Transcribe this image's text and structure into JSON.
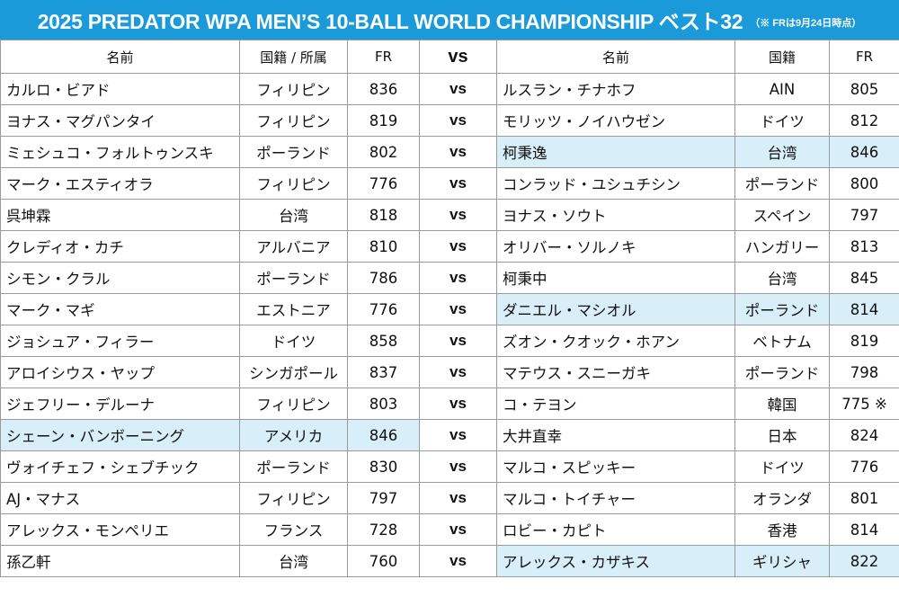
{
  "header": {
    "title": "2025 PREDATOR WPA MEN’S 10-BALL WORLD CHAMPIONSHIP ベスト32",
    "note": "（※ FRは9月24日時点）",
    "color": "#1a9ad9"
  },
  "columns": {
    "left_name": "名前",
    "left_country": "国籍 / 所属",
    "left_fr": "FR",
    "vs": "vs",
    "right_name": "名前",
    "right_country": "国籍",
    "right_fr": "FR"
  },
  "highlight_color": "#d8eef9",
  "matches": [
    {
      "left": {
        "name": "カルロ・ビアド",
        "country": "フィリピン",
        "fr": "836",
        "highlight": false
      },
      "vs": "vs",
      "right": {
        "name": "ルスラン・チナホフ",
        "country": "AIN",
        "fr": "805",
        "highlight": false
      }
    },
    {
      "left": {
        "name": "ヨナス・マグパンタイ",
        "country": "フィリピン",
        "fr": "819",
        "highlight": false
      },
      "vs": "vs",
      "right": {
        "name": "モリッツ・ノイハウゼン",
        "country": "ドイツ",
        "fr": "812",
        "highlight": false
      }
    },
    {
      "left": {
        "name": "ミェシュコ・フォルトゥンスキ",
        "country": "ポーランド",
        "fr": "802",
        "highlight": false
      },
      "vs": "vs",
      "right": {
        "name": "柯秉逸",
        "country": "台湾",
        "fr": "846",
        "highlight": true
      }
    },
    {
      "left": {
        "name": "マーク・エスティオラ",
        "country": "フィリピン",
        "fr": "776",
        "highlight": false
      },
      "vs": "vs",
      "right": {
        "name": "コンラッド・ユシュチシン",
        "country": "ポーランド",
        "fr": "800",
        "highlight": false
      }
    },
    {
      "left": {
        "name": "呉坤霖",
        "country": "台湾",
        "fr": "818",
        "highlight": false
      },
      "vs": "vs",
      "right": {
        "name": "ヨナス・ソウト",
        "country": "スペイン",
        "fr": "797",
        "highlight": false
      }
    },
    {
      "left": {
        "name": "クレディオ・カチ",
        "country": "アルバニア",
        "fr": "810",
        "highlight": false
      },
      "vs": "vs",
      "right": {
        "name": "オリバー・ソルノキ",
        "country": "ハンガリー",
        "fr": "813",
        "highlight": false
      }
    },
    {
      "left": {
        "name": "シモン・クラル",
        "country": "ポーランド",
        "fr": "786",
        "highlight": false
      },
      "vs": "vs",
      "right": {
        "name": "柯秉中",
        "country": "台湾",
        "fr": "845",
        "highlight": false
      }
    },
    {
      "left": {
        "name": "マーク・マギ",
        "country": "エストニア",
        "fr": "776",
        "highlight": false
      },
      "vs": "vs",
      "right": {
        "name": "ダニエル・マシオル",
        "country": "ポーランド",
        "fr": "814",
        "highlight": true
      }
    },
    {
      "left": {
        "name": "ジョシュア・フィラー",
        "country": "ドイツ",
        "fr": "858",
        "highlight": false
      },
      "vs": "vs",
      "right": {
        "name": "ズオン・クオック・ホアン",
        "country": "ベトナム",
        "fr": "819",
        "highlight": false
      }
    },
    {
      "left": {
        "name": "アロイシウス・ヤップ",
        "country": "シンガポール",
        "fr": "837",
        "highlight": false
      },
      "vs": "vs",
      "right": {
        "name": "マテウス・スニーガキ",
        "country": "ポーランド",
        "fr": "798",
        "highlight": false
      }
    },
    {
      "left": {
        "name": "ジェフリー・デルーナ",
        "country": "フィリピン",
        "fr": "803",
        "highlight": false
      },
      "vs": "vs",
      "right": {
        "name": "コ・テヨン",
        "country": "韓国",
        "fr": "775 ※",
        "highlight": false
      }
    },
    {
      "left": {
        "name": "シェーン・バンボーニング",
        "country": "アメリカ",
        "fr": "846",
        "highlight": true
      },
      "vs": "vs",
      "right": {
        "name": "大井直幸",
        "country": "日本",
        "fr": "824",
        "highlight": false
      }
    },
    {
      "left": {
        "name": "ヴォイチェフ・シェブチック",
        "country": "ポーランド",
        "fr": "830",
        "highlight": false
      },
      "vs": "vs",
      "right": {
        "name": "マルコ・スピッキー",
        "country": "ドイツ",
        "fr": "776",
        "highlight": false
      }
    },
    {
      "left": {
        "name": "AJ・マナス",
        "country": "フィリピン",
        "fr": "797",
        "highlight": false
      },
      "vs": "vs",
      "right": {
        "name": "マルコ・トイチャー",
        "country": "オランダ",
        "fr": "801",
        "highlight": false
      }
    },
    {
      "left": {
        "name": "アレックス・モンペリエ",
        "country": "フランス",
        "fr": "728",
        "highlight": false
      },
      "vs": "vs",
      "right": {
        "name": "ロビー・カピト",
        "country": "香港",
        "fr": "814",
        "highlight": false
      }
    },
    {
      "left": {
        "name": "孫乙軒",
        "country": "台湾",
        "fr": "760",
        "highlight": false
      },
      "vs": "vs",
      "right": {
        "name": "アレックス・カザキス",
        "country": "ギリシャ",
        "fr": "822",
        "highlight": true
      }
    }
  ]
}
